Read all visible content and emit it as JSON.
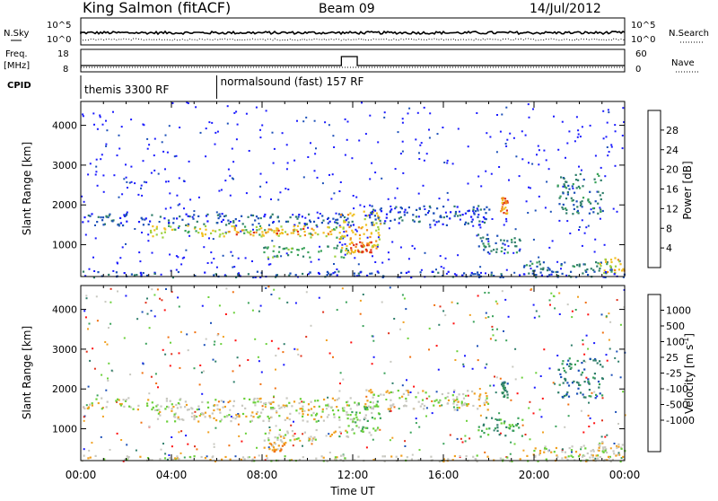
{
  "header": {
    "station": "King Salmon (fitACF)",
    "beam": "Beam 09",
    "date": "14/Jul/2012"
  },
  "top_panels": {
    "nsky_label": "N.Sky",
    "nsearch_label": "N.Search",
    "nsky_ticks": [
      "10^5",
      "10^0"
    ],
    "freq_label_1": "Freq.",
    "freq_label_2": "[MHz]",
    "freq_ticks": [
      "18",
      "8"
    ],
    "nave_label": "Nave",
    "nave_ticks": [
      "60",
      "0"
    ],
    "cpid_label": "CPID",
    "cpid_segments": [
      {
        "text": "themis 3300 RF",
        "start_hour": 0,
        "end_hour": 6
      },
      {
        "text": "normalsound (fast) 157 RF",
        "start_hour": 6,
        "end_hour": 24
      }
    ]
  },
  "chart_data": [
    {
      "type": "heatmap",
      "panel": "power",
      "xlabel": "Time UT",
      "ylabel": "Slant Range [km]",
      "xlim_hours": [
        0,
        24
      ],
      "ylim": [
        200,
        4600
      ],
      "y_ticks": [
        1000,
        2000,
        3000,
        4000
      ],
      "colorbar_label": "Power [dB]",
      "colorbar_ticks": [
        "4",
        "8",
        "12",
        "16",
        "20",
        "24",
        "28"
      ],
      "colorbar_colors": [
        "#1a1aff",
        "#1b4fb8",
        "#2f7e6a",
        "#3aa25a",
        "#9ed13f",
        "#f0c020",
        "#f08a1a",
        "#e0301a"
      ],
      "features": [
        {
          "from_h": 0.0,
          "to_h": 12.0,
          "r1": 1500,
          "r2": 1800,
          "level": 1
        },
        {
          "from_h": 3.0,
          "to_h": 11.5,
          "r1": 1200,
          "r2": 1500,
          "level": 4
        },
        {
          "from_h": 6.5,
          "to_h": 11.0,
          "r1": 1250,
          "r2": 1450,
          "level": 6
        },
        {
          "from_h": 8.0,
          "to_h": 11.8,
          "r1": 700,
          "r2": 1000,
          "level": 3
        },
        {
          "from_h": 11.3,
          "to_h": 13.2,
          "r1": 800,
          "r2": 1900,
          "level": 5
        },
        {
          "from_h": 11.8,
          "to_h": 12.8,
          "r1": 800,
          "r2": 1100,
          "level": 7
        },
        {
          "from_h": 12.5,
          "to_h": 18.0,
          "r1": 1500,
          "r2": 2000,
          "level": 1
        },
        {
          "from_h": 17.5,
          "to_h": 19.5,
          "r1": 800,
          "r2": 1300,
          "level": 2
        },
        {
          "from_h": 18.5,
          "to_h": 18.8,
          "r1": 1800,
          "r2": 2200,
          "level": 6
        },
        {
          "from_h": 19.5,
          "to_h": 23.5,
          "r1": 300,
          "r2": 600,
          "level": 2
        },
        {
          "from_h": 21.0,
          "to_h": 23.0,
          "r1": 1800,
          "r2": 2800,
          "level": 2
        },
        {
          "from_h": 22.8,
          "to_h": 24.0,
          "r1": 300,
          "r2": 700,
          "level": 5
        },
        {
          "from_h": 0.0,
          "to_h": 24.0,
          "r1": 200,
          "r2": 350,
          "level": 1
        }
      ]
    },
    {
      "type": "heatmap",
      "panel": "velocity",
      "xlabel": "Time UT",
      "ylabel": "Slant Range [km]",
      "xlim_hours": [
        0,
        24
      ],
      "ylim": [
        200,
        4600
      ],
      "y_ticks": [
        1000,
        2000,
        3000,
        4000
      ],
      "colorbar_label": "Velocity [m s",
      "colorbar_label_sup": "-1",
      "colorbar_label_end": "]",
      "colorbar_ticks": [
        "1000",
        "500",
        "100",
        "25",
        "-25",
        "-100",
        "-500",
        "-1000"
      ],
      "colorbar_colors": [
        "#1a1aff",
        "#1b4fb8",
        "#2f7e6a",
        "#3aa25a",
        "#6ad03a",
        "#c8c8c0",
        "#f0a020",
        "#f07010",
        "#e0301a",
        "#ff1010"
      ],
      "features": [
        {
          "from_h": 0.0,
          "to_h": 12.0,
          "r1": 1500,
          "r2": 1800,
          "level": 5
        },
        {
          "from_h": 3.0,
          "to_h": 11.5,
          "r1": 1200,
          "r2": 1500,
          "level": 5
        },
        {
          "from_h": 8.0,
          "to_h": 11.8,
          "r1": 700,
          "r2": 1000,
          "level": 5
        },
        {
          "from_h": 8.0,
          "to_h": 9.0,
          "r1": 450,
          "r2": 700,
          "level": 6
        },
        {
          "from_h": 11.3,
          "to_h": 13.2,
          "r1": 800,
          "r2": 1900,
          "level": 4
        },
        {
          "from_h": 12.5,
          "to_h": 18.0,
          "r1": 1500,
          "r2": 2000,
          "level": 5
        },
        {
          "from_h": 17.5,
          "to_h": 19.5,
          "r1": 800,
          "r2": 1300,
          "level": 3
        },
        {
          "from_h": 18.5,
          "to_h": 18.8,
          "r1": 1800,
          "r2": 2200,
          "level": 2
        },
        {
          "from_h": 19.5,
          "to_h": 23.5,
          "r1": 300,
          "r2": 600,
          "level": 5
        },
        {
          "from_h": 21.0,
          "to_h": 23.0,
          "r1": 1800,
          "r2": 2800,
          "level": 2
        },
        {
          "from_h": 22.8,
          "to_h": 24.0,
          "r1": 300,
          "r2": 700,
          "level": 5
        },
        {
          "from_h": 0.0,
          "to_h": 24.0,
          "r1": 200,
          "r2": 350,
          "level": 5
        }
      ]
    }
  ],
  "x_tick_labels": [
    "00:00",
    "04:00",
    "08:00",
    "12:00",
    "16:00",
    "20:00",
    "00:00"
  ],
  "x_axis_label": "Time UT"
}
